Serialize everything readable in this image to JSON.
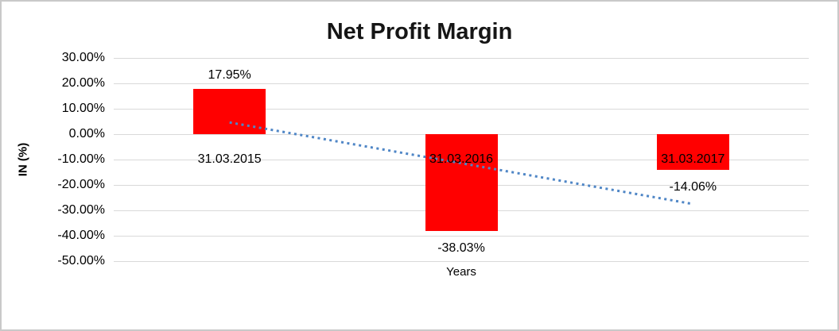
{
  "chart_data": {
    "type": "bar",
    "title": "Net Profit Margin",
    "xlabel": "Years",
    "ylabel": "IN (%)",
    "categories": [
      "31.03.2015",
      "31.03.2016",
      "31.03.2017"
    ],
    "series": [
      {
        "name": "Net Profit Margin",
        "values": [
          17.95,
          -38.03,
          -14.06
        ],
        "value_labels": [
          "17.95%",
          "-38.03%",
          "-14.06%"
        ],
        "color": "#ff0000"
      }
    ],
    "ylim": [
      -50,
      30
    ],
    "yticks": [
      {
        "value": 30,
        "label": "30.00%"
      },
      {
        "value": 20,
        "label": "20.00%"
      },
      {
        "value": 10,
        "label": "10.00%"
      },
      {
        "value": 0,
        "label": "0.00%"
      },
      {
        "value": -10,
        "label": "-10.00%"
      },
      {
        "value": -20,
        "label": "-20.00%"
      },
      {
        "value": -30,
        "label": "-30.00%"
      },
      {
        "value": -40,
        "label": "-40.00%"
      },
      {
        "value": -50,
        "label": "-50.00%"
      }
    ],
    "grid": "horizontal",
    "gridline_color": "#d9d9d9",
    "legend": "none",
    "trendline": {
      "type": "linear",
      "style": "dotted",
      "color": "#4f86c6",
      "start_value": 4.6,
      "end_value": -27.5
    }
  }
}
